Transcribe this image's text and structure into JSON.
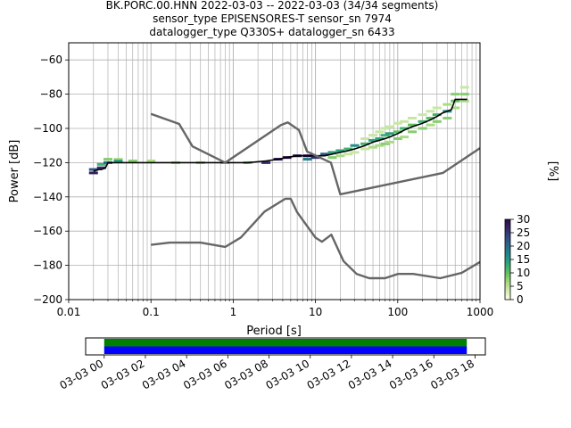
{
  "title": {
    "line1": "BK.PORC.00.HNN   2022-03-03 -- 2022-03-03  (34/34 segments)",
    "line2": "sensor_type EPISENSORES-T sensor_sn 7974",
    "line3": "datalogger_type Q330S+ datalogger_sn 6433"
  },
  "chart_data": [
    {
      "type": "heatmap",
      "xlabel": "Period [s]",
      "ylabel": "Power [dB]",
      "xscale": "log",
      "xlim": [
        0.01,
        1000
      ],
      "ylim": [
        -200,
        -50
      ],
      "xtick_labels": [
        "0.01",
        "0.1",
        "1",
        "10",
        "100",
        "1000"
      ],
      "xticks": [
        0.01,
        0.1,
        1,
        10,
        100,
        1000
      ],
      "yticks": [
        -200,
        -180,
        -160,
        -140,
        -120,
        -100,
        -80,
        -60
      ],
      "ytick_labels": [
        "−200",
        "−180",
        "−160",
        "−140",
        "−120",
        "−100",
        "−80",
        "−60"
      ],
      "grid": true,
      "colorbar": {
        "label": "[%]",
        "range": [
          0,
          30
        ],
        "ticks": [
          0,
          5,
          10,
          15,
          20,
          25,
          30
        ],
        "tick_labels": [
          "0",
          "5",
          "10",
          "15",
          "20",
          "25",
          "30"
        ],
        "colormap": [
          "#ffffe0",
          "#d2ebb0",
          "#a0d87a",
          "#60c060",
          "#2ea87a",
          "#1f8a8a",
          "#2a6a8c",
          "#324a82",
          "#35276a",
          "#2a0f48"
        ]
      },
      "series": [
        {
          "name": "",
          "style": "mode",
          "color": "#000000",
          "x": [
            0.02,
            0.023,
            0.025,
            0.028,
            0.03,
            0.04,
            0.06,
            0.1,
            0.2,
            0.4,
            0.8,
            1.5,
            2.5,
            3.5,
            4.5,
            6,
            8,
            10,
            13,
            16,
            20,
            25,
            30,
            40,
            50,
            60,
            70,
            80,
            100,
            120,
            150,
            200,
            250,
            300,
            350,
            400,
            450,
            500,
            700
          ],
          "y": [
            -125,
            -124,
            -124,
            -123,
            -120,
            -120,
            -120,
            -120,
            -120,
            -120,
            -120,
            -120,
            -119,
            -118,
            -117,
            -116,
            -116,
            -116,
            -116,
            -115,
            -114,
            -113,
            -112,
            -110,
            -108,
            -107,
            -106,
            -105,
            -103,
            -101,
            -99,
            -97,
            -95,
            -93,
            -91,
            -90,
            -89,
            -83,
            -83
          ]
        },
        {
          "name": "",
          "style": "noise-model",
          "color": "#666666",
          "x": [
            0.1,
            0.22,
            0.32,
            0.8,
            3.8,
            4.6,
            6.3,
            7.9,
            15.4,
            20,
            354.8,
            1000
          ],
          "y": [
            -91.5,
            -97.4,
            -110.5,
            -120,
            -98,
            -96.5,
            -101,
            -113.5,
            -120,
            -138.5,
            -126,
            -111.5
          ]
        },
        {
          "name": "",
          "style": "noise-model",
          "color": "#666666",
          "x": [
            0.1,
            0.17,
            0.4,
            0.8,
            1.24,
            2.4,
            4.3,
            5,
            6,
            10,
            12,
            15.6,
            21.9,
            31.6,
            45,
            70,
            101,
            154,
            328,
            600,
            1000
          ],
          "y": [
            -168,
            -166.7,
            -166.7,
            -169.2,
            -163.7,
            -148.6,
            -141.1,
            -141.1,
            -149,
            -163.8,
            -166.2,
            -162.1,
            -177.5,
            -185,
            -187.5,
            -187.5,
            -185,
            -185,
            -187.5,
            -184.4,
            -178
          ]
        }
      ],
      "heatmap_cells": [
        {
          "x": 0.02,
          "y": -126,
          "p": 28
        },
        {
          "x": 0.02,
          "y": -124,
          "p": 22
        },
        {
          "x": 0.025,
          "y": -123,
          "p": 26
        },
        {
          "x": 0.025,
          "y": -121,
          "p": 12
        },
        {
          "x": 0.03,
          "y": -118,
          "p": 8
        },
        {
          "x": 0.03,
          "y": -120,
          "p": 20
        },
        {
          "x": 0.04,
          "y": -118,
          "p": 6
        },
        {
          "x": 0.04,
          "y": -119,
          "p": 14
        },
        {
          "x": 0.06,
          "y": -119,
          "p": 8
        },
        {
          "x": 0.1,
          "y": -119,
          "p": 6
        },
        {
          "x": 0.2,
          "y": -120,
          "p": 8
        },
        {
          "x": 0.4,
          "y": -120,
          "p": 8
        },
        {
          "x": 0.8,
          "y": -120,
          "p": 8
        },
        {
          "x": 1.5,
          "y": -120,
          "p": 10
        },
        {
          "x": 2.5,
          "y": -120,
          "p": 26
        },
        {
          "x": 3.5,
          "y": -118,
          "p": 28
        },
        {
          "x": 4.5,
          "y": -117,
          "p": 30
        },
        {
          "x": 6,
          "y": -116,
          "p": 30
        },
        {
          "x": 8,
          "y": -116,
          "p": 30
        },
        {
          "x": 8,
          "y": -118,
          "p": 18
        },
        {
          "x": 10,
          "y": -117,
          "p": 26
        },
        {
          "x": 13,
          "y": -115,
          "p": 22
        },
        {
          "x": 16,
          "y": -114,
          "p": 14
        },
        {
          "x": 16,
          "y": -117,
          "p": 8
        },
        {
          "x": 20,
          "y": -113,
          "p": 14
        },
        {
          "x": 20,
          "y": -116,
          "p": 6
        },
        {
          "x": 25,
          "y": -112,
          "p": 12
        },
        {
          "x": 25,
          "y": -115,
          "p": 4
        },
        {
          "x": 30,
          "y": -110,
          "p": 16
        },
        {
          "x": 30,
          "y": -114,
          "p": 4
        },
        {
          "x": 40,
          "y": -109,
          "p": 12
        },
        {
          "x": 40,
          "y": -106,
          "p": 4
        },
        {
          "x": 40,
          "y": -112,
          "p": 4
        },
        {
          "x": 50,
          "y": -107,
          "p": 14
        },
        {
          "x": 50,
          "y": -104,
          "p": 4
        },
        {
          "x": 50,
          "y": -111,
          "p": 6
        },
        {
          "x": 60,
          "y": -106,
          "p": 14
        },
        {
          "x": 60,
          "y": -102,
          "p": 4
        },
        {
          "x": 60,
          "y": -110,
          "p": 6
        },
        {
          "x": 70,
          "y": -104,
          "p": 12
        },
        {
          "x": 70,
          "y": -100,
          "p": 4
        },
        {
          "x": 70,
          "y": -109,
          "p": 8
        },
        {
          "x": 80,
          "y": -103,
          "p": 14
        },
        {
          "x": 80,
          "y": -99,
          "p": 4
        },
        {
          "x": 80,
          "y": -108,
          "p": 6
        },
        {
          "x": 100,
          "y": -102,
          "p": 10
        },
        {
          "x": 100,
          "y": -97,
          "p": 4
        },
        {
          "x": 100,
          "y": -106,
          "p": 8
        },
        {
          "x": 120,
          "y": -100,
          "p": 12
        },
        {
          "x": 120,
          "y": -96,
          "p": 4
        },
        {
          "x": 120,
          "y": -105,
          "p": 6
        },
        {
          "x": 150,
          "y": -98,
          "p": 10
        },
        {
          "x": 150,
          "y": -94,
          "p": 4
        },
        {
          "x": 150,
          "y": -102,
          "p": 8
        },
        {
          "x": 200,
          "y": -96,
          "p": 12
        },
        {
          "x": 200,
          "y": -92,
          "p": 4
        },
        {
          "x": 200,
          "y": -100,
          "p": 8
        },
        {
          "x": 250,
          "y": -94,
          "p": 10
        },
        {
          "x": 250,
          "y": -90,
          "p": 4
        },
        {
          "x": 250,
          "y": -98,
          "p": 6
        },
        {
          "x": 300,
          "y": -92,
          "p": 12
        },
        {
          "x": 300,
          "y": -88,
          "p": 4
        },
        {
          "x": 300,
          "y": -96,
          "p": 8
        },
        {
          "x": 400,
          "y": -90,
          "p": 16
        },
        {
          "x": 400,
          "y": -86,
          "p": 6
        },
        {
          "x": 400,
          "y": -94,
          "p": 8
        },
        {
          "x": 500,
          "y": -84,
          "p": 10
        },
        {
          "x": 500,
          "y": -80,
          "p": 8
        },
        {
          "x": 500,
          "y": -88,
          "p": 6
        },
        {
          "x": 650,
          "y": -80,
          "p": 8
        },
        {
          "x": 650,
          "y": -84,
          "p": 6
        },
        {
          "x": 650,
          "y": -76,
          "p": 4
        }
      ]
    },
    {
      "type": "bar",
      "subtype": "data-coverage-timeline",
      "xtick_labels": [
        "03-03 00",
        "03-03 02",
        "03-03 04",
        "03-03 06",
        "03-03 08",
        "03-03 10",
        "03-03 12",
        "03-03 14",
        "03-03 16",
        "03-03 18"
      ],
      "xticks_hours": [
        0,
        2,
        4,
        6,
        8,
        10,
        12,
        14,
        16,
        18
      ],
      "xlim_hours": [
        -0.9,
        18.5
      ],
      "bars": [
        {
          "name": "",
          "start_hour": 0,
          "end_hour": 17.6,
          "color": "#008000"
        },
        {
          "name": "",
          "start_hour": 0,
          "end_hour": 17.6,
          "color": "#0000ff"
        }
      ]
    }
  ]
}
